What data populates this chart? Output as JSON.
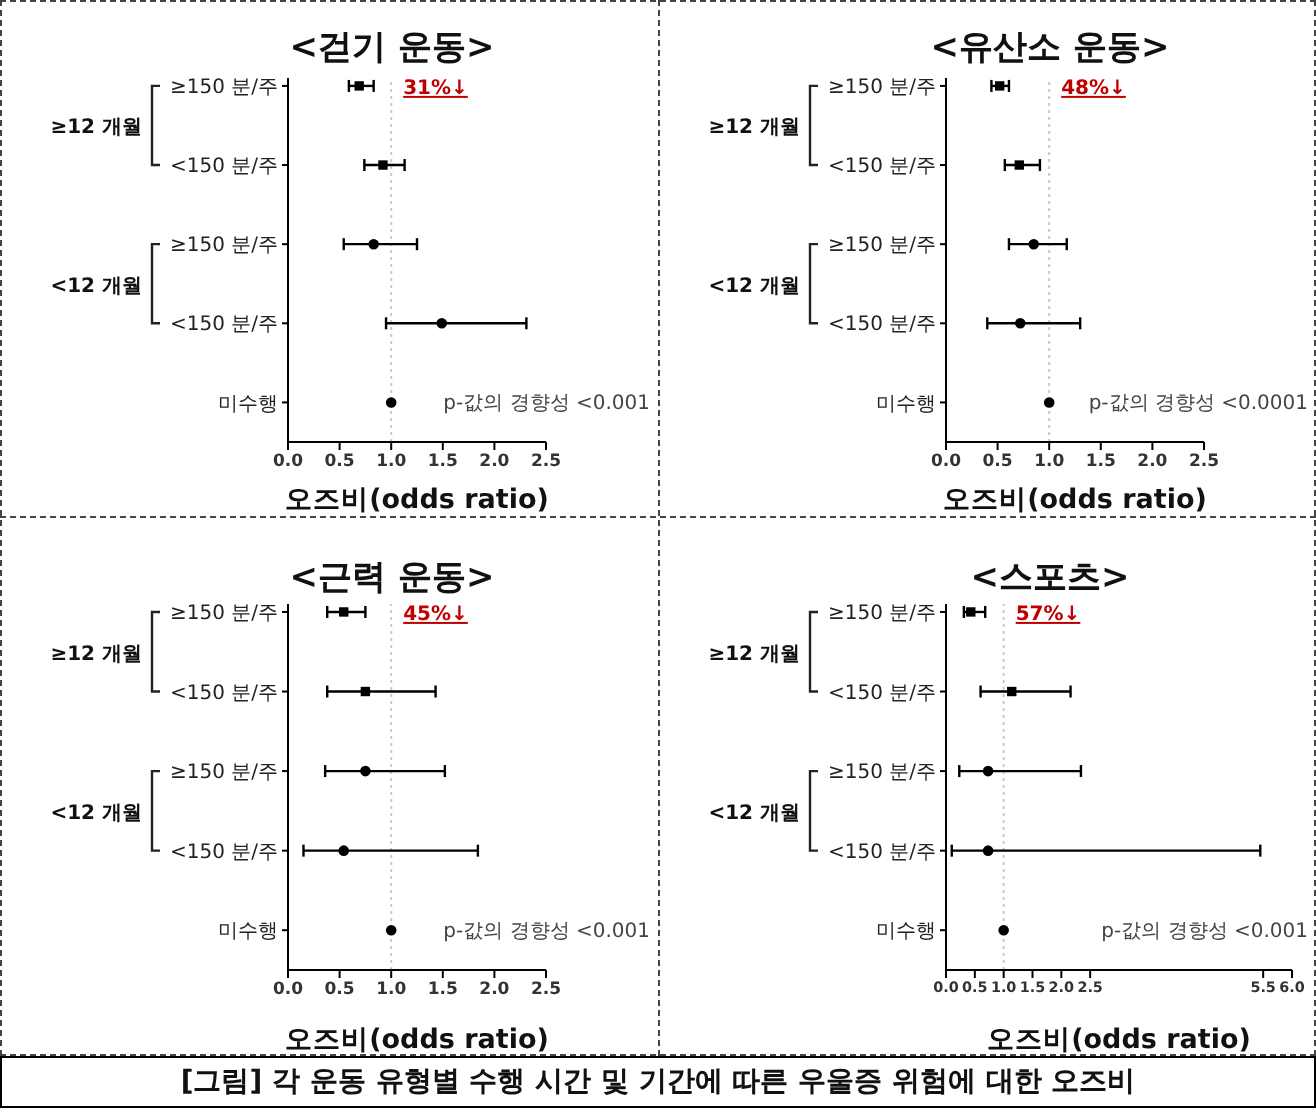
{
  "chart_data": [
    {
      "type": "scatter",
      "orientation": "horizontal",
      "title": "<걷기 운동>",
      "xlabel": "오즈비(odds ratio)",
      "categories": [
        "≥150 분/주",
        "<150 분/주",
        "≥150 분/주",
        "<150 분/주",
        "미수행"
      ],
      "series": [
        {
          "color": "#000000",
          "marker": "square",
          "values": [
            0.69,
            0.92,
            null,
            null,
            null
          ],
          "errors": [
            [
              0.59,
              0.83
            ],
            [
              0.74,
              1.13
            ],
            null,
            null,
            null
          ]
        },
        {
          "color": "#000000",
          "marker": "circle",
          "values": [
            null,
            null,
            0.83,
            1.49,
            1.0
          ],
          "errors": [
            null,
            null,
            [
              0.54,
              1.25
            ],
            [
              0.95,
              2.31
            ],
            null
          ]
        }
      ],
      "xlim": [
        0,
        2.5
      ],
      "xticks": [
        {
          "value": 0,
          "label": "0.0"
        },
        0.5,
        {
          "value": 1,
          "label": "1.0"
        },
        1.5,
        {
          "value": 2,
          "label": "2.0"
        },
        2.5
      ],
      "ref_lines": [
        {
          "axis": "x",
          "value": 1,
          "color": "#c8c8c8",
          "line_style": "dotted"
        }
      ],
      "annotations": [
        "≥12 개월",
        "<12 개월",
        "31%↓",
        "p-값의 경향성 <0.001"
      ]
    },
    {
      "type": "scatter",
      "orientation": "horizontal",
      "title": "<유산소 운동>",
      "xlabel": "오즈비(odds ratio)",
      "categories": [
        "≥150 분/주",
        "<150 분/주",
        "≥150 분/주",
        "<150 분/주",
        "미수행"
      ],
      "series": [
        {
          "color": "#000000",
          "marker": "square",
          "values": [
            0.52,
            0.71,
            null,
            null,
            null
          ],
          "errors": [
            [
              0.44,
              0.61
            ],
            [
              0.57,
              0.91
            ],
            null,
            null,
            null
          ]
        },
        {
          "color": "#000000",
          "marker": "circle",
          "values": [
            null,
            null,
            0.85,
            0.72,
            1.0
          ],
          "errors": [
            null,
            null,
            [
              0.61,
              1.17
            ],
            [
              0.4,
              1.3
            ],
            null
          ]
        }
      ],
      "xlim": [
        0,
        2.5
      ],
      "xticks": [
        {
          "value": 0,
          "label": "0.0"
        },
        0.5,
        {
          "value": 1,
          "label": "1.0"
        },
        1.5,
        {
          "value": 2,
          "label": "2.0"
        },
        2.5
      ],
      "ref_lines": [
        {
          "axis": "x",
          "value": 1,
          "color": "#c8c8c8",
          "line_style": "dotted"
        }
      ],
      "annotations": [
        "≥12 개월",
        "<12 개월",
        "48%↓",
        "p-값의 경향성 <0.0001"
      ]
    },
    {
      "type": "scatter",
      "orientation": "horizontal",
      "title": "<근력 운동>",
      "xlabel": "오즈비(odds ratio)",
      "categories": [
        "≥150 분/주",
        "<150 분/주",
        "≥150 분/주",
        "<150 분/주",
        "미수행"
      ],
      "series": [
        {
          "color": "#000000",
          "marker": "square",
          "values": [
            0.54,
            0.75,
            null,
            null,
            null
          ],
          "errors": [
            [
              0.38,
              0.75
            ],
            [
              0.38,
              1.43
            ],
            null,
            null,
            null
          ]
        },
        {
          "color": "#000000",
          "marker": "circle",
          "values": [
            null,
            null,
            0.75,
            0.54,
            1.0
          ],
          "errors": [
            null,
            null,
            [
              0.36,
              1.52
            ],
            [
              0.15,
              1.84
            ],
            null
          ]
        }
      ],
      "xlim": [
        0,
        2.5
      ],
      "xticks": [
        {
          "value": 0,
          "label": "0.0"
        },
        0.5,
        {
          "value": 1,
          "label": "1.0"
        },
        1.5,
        {
          "value": 2,
          "label": "2.0"
        },
        2.5
      ],
      "ref_lines": [
        {
          "axis": "x",
          "value": 1,
          "color": "#c8c8c8",
          "line_style": "dotted"
        }
      ],
      "annotations": [
        "≥12 개월",
        "<12 개월",
        "45%↓",
        "p-값의 경향성 <0.001"
      ]
    },
    {
      "type": "scatter",
      "orientation": "horizontal",
      "title": "<스포츠>",
      "xlabel": "오즈비(odds ratio)",
      "categories": [
        "≥150 분/주",
        "<150 분/주",
        "≥150 분/주",
        "<150 분/주",
        "미수행"
      ],
      "series": [
        {
          "color": "#000000",
          "marker": "square",
          "values": [
            0.43,
            1.14,
            null,
            null,
            null
          ],
          "errors": [
            [
              0.31,
              0.68
            ],
            [
              0.6,
              2.16
            ],
            null,
            null,
            null
          ]
        },
        {
          "color": "#000000",
          "marker": "circle",
          "values": [
            null,
            null,
            0.73,
            0.73,
            1.0
          ],
          "errors": [
            null,
            null,
            [
              0.23,
              2.34
            ],
            [
              0.1,
              5.45
            ],
            null
          ]
        }
      ],
      "xlim": [
        0,
        6
      ],
      "xticks": [
        {
          "value": 0,
          "label": "0.0"
        },
        0.5,
        {
          "value": 1,
          "label": "1.0"
        },
        1.5,
        {
          "value": 2,
          "label": "2.0"
        },
        2.5,
        5.5,
        {
          "value": 6,
          "label": "6.0"
        }
      ],
      "ref_lines": [
        {
          "axis": "x",
          "value": 1,
          "color": "#c8c8c8",
          "line_style": "dotted"
        }
      ],
      "annotations": [
        "≥12 개월",
        "<12 개월",
        "57%↓",
        "p-값의 경향성 <0.001"
      ]
    },
    {
      "type": "other",
      "title": "[그림] 각 운동 유형별 수행 시간 및 기간에 따른 우울증 위험에 대한 오즈비"
    }
  ]
}
